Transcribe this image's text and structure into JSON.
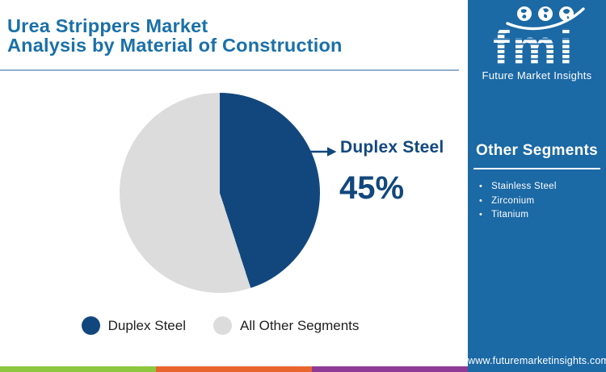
{
  "header": {
    "title_line1": "Urea Strippers Market",
    "title_line2": "Analysis by Material of Construction"
  },
  "chart_data": {
    "type": "pie",
    "title": "Urea Strippers Market Analysis by Material of Construction",
    "start_angle_deg": 0,
    "direction": "clockwise",
    "segments": [
      {
        "label": "Duplex Steel",
        "value": 45,
        "color": "#12477e"
      },
      {
        "label": "All Other Segments",
        "value": 55,
        "color": "#dcdcdc"
      }
    ],
    "callout": {
      "segment": "Duplex Steel",
      "label": "Duplex Steel",
      "value_text": "45%"
    },
    "legend_position": "bottom"
  },
  "sidebar": {
    "logo": {
      "text": "fmi",
      "subtitle": "Future Market Insights",
      "globes": [
        "americas-globe-icon",
        "europe-africa-globe-icon",
        "asia-pacific-globe-icon"
      ]
    },
    "other_segments": {
      "heading": "Other Segments",
      "items": [
        "Stainless Steel",
        "Zirconium",
        "Titanium"
      ]
    },
    "website": "www.futuremarketinsights.com"
  },
  "footer_stripe_colors": [
    "#8dc63f",
    "#e8662d",
    "#8e3a96"
  ],
  "colors": {
    "title_blue": "#1a70a9",
    "divider_blue": "#93aed0",
    "pie_primary_navy": "#12477e",
    "pie_secondary_gray": "#dcdcdc",
    "sidebar_blue": "#1b69a5",
    "legend_text": "#1f1f1f",
    "background": "#ffffff"
  }
}
